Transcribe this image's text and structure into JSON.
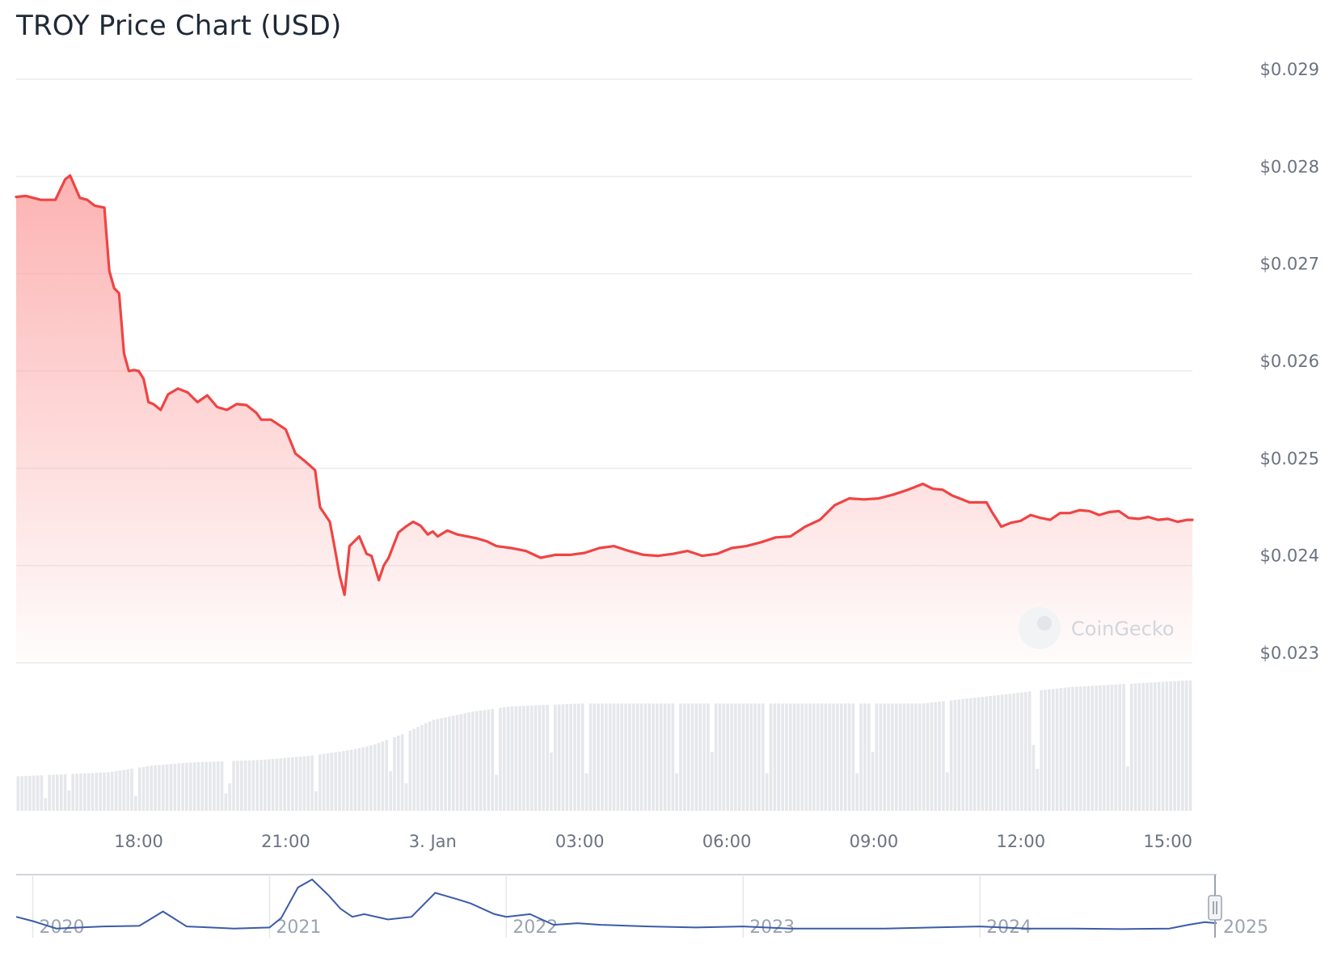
{
  "chart_data": {
    "type": "line",
    "title": "TROY Price Chart (USD)",
    "watermark": "CoinGecko",
    "colors": {
      "line": "#ef4444",
      "area_top": "#fca5a5",
      "volume": "#e5e7eb",
      "navigator": "#3b5ba9",
      "grid": "#ececec"
    },
    "y_axis": {
      "ticks": [
        "$0.029",
        "$0.028",
        "$0.027",
        "$0.026",
        "$0.025",
        "$0.024",
        "$0.023"
      ],
      "ylim": [
        0.023,
        0.029
      ]
    },
    "x_axis": {
      "xlim_hours": [
        15.5,
        39.5
      ],
      "ticks": [
        {
          "hour": 18,
          "label": "18:00"
        },
        {
          "hour": 21,
          "label": "21:00"
        },
        {
          "hour": 24,
          "label": "3. Jan"
        },
        {
          "hour": 27,
          "label": "03:00"
        },
        {
          "hour": 30,
          "label": "06:00"
        },
        {
          "hour": 33,
          "label": "09:00"
        },
        {
          "hour": 36,
          "label": "12:00"
        },
        {
          "hour": 39,
          "label": "15:00"
        }
      ]
    },
    "series": [
      {
        "x_hours": [
          15.5,
          15.7,
          16.0,
          16.3,
          16.5,
          16.6,
          16.8,
          16.95,
          17.1,
          17.3,
          17.4,
          17.5,
          17.6,
          17.7,
          17.8,
          17.9,
          18.0,
          18.1,
          18.2,
          18.3,
          18.45,
          18.6,
          18.8,
          19.0,
          19.2,
          19.4,
          19.6,
          19.8,
          20.0,
          20.2,
          20.4,
          20.5,
          20.7,
          21.0,
          21.2,
          21.4,
          21.6,
          21.7,
          21.9,
          22.0,
          22.1,
          22.2,
          22.3,
          22.5,
          22.65,
          22.75,
          22.9,
          23.0,
          23.1,
          23.3,
          23.45,
          23.6,
          23.75,
          23.9,
          24.0,
          24.1,
          24.3,
          24.5,
          24.7,
          24.9,
          25.1,
          25.3,
          25.6,
          25.9,
          26.2,
          26.5,
          26.8,
          27.1,
          27.4,
          27.7,
          28.0,
          28.3,
          28.6,
          28.9,
          29.2,
          29.5,
          29.8,
          30.1,
          30.4,
          30.7,
          31.0,
          31.3,
          31.6,
          31.9,
          32.2,
          32.5,
          32.8,
          33.1,
          33.4,
          33.7,
          34.0,
          34.2,
          34.4,
          34.6,
          34.8,
          34.95,
          35.1,
          35.3,
          35.4,
          35.6,
          35.8,
          36.0,
          36.2,
          36.4,
          36.6,
          36.8,
          37.0,
          37.2,
          37.4,
          37.6,
          37.8,
          38.0,
          38.2,
          38.4,
          38.6,
          38.8,
          39.0,
          39.2,
          39.4,
          39.5
        ],
        "values": [
          0.02779,
          0.0278,
          0.02776,
          0.02776,
          0.02797,
          0.02801,
          0.02778,
          0.02776,
          0.0277,
          0.02768,
          0.02703,
          0.02685,
          0.0268,
          0.02618,
          0.026,
          0.02601,
          0.026,
          0.02592,
          0.02568,
          0.02566,
          0.0256,
          0.02576,
          0.02582,
          0.02578,
          0.02568,
          0.02575,
          0.02563,
          0.0256,
          0.02566,
          0.02565,
          0.02557,
          0.0255,
          0.0255,
          0.0254,
          0.02515,
          0.02507,
          0.02498,
          0.0246,
          0.02445,
          0.02418,
          0.0239,
          0.0237,
          0.0242,
          0.0243,
          0.02412,
          0.0241,
          0.02385,
          0.024,
          0.02408,
          0.02434,
          0.0244,
          0.02445,
          0.02441,
          0.02432,
          0.02435,
          0.0243,
          0.02436,
          0.02432,
          0.0243,
          0.02428,
          0.02425,
          0.0242,
          0.02418,
          0.02415,
          0.02408,
          0.02411,
          0.02411,
          0.02413,
          0.02418,
          0.0242,
          0.02415,
          0.02411,
          0.0241,
          0.02412,
          0.02415,
          0.0241,
          0.02412,
          0.02418,
          0.0242,
          0.02424,
          0.02429,
          0.0243,
          0.0244,
          0.02447,
          0.02462,
          0.02469,
          0.02468,
          0.02469,
          0.02473,
          0.02478,
          0.02484,
          0.02479,
          0.02478,
          0.02472,
          0.02468,
          0.02465,
          0.02465,
          0.02465,
          0.02456,
          0.0244,
          0.02444,
          0.02446,
          0.02452,
          0.02449,
          0.02447,
          0.02454,
          0.02454,
          0.02457,
          0.02456,
          0.02452,
          0.02455,
          0.02456,
          0.02449,
          0.02448,
          0.0245,
          0.02447,
          0.02448,
          0.02445,
          0.02447,
          0.02447
        ]
      }
    ],
    "volume": {
      "baseline": 0.2,
      "steps": [
        {
          "x": 15.5,
          "level": 0.25
        },
        {
          "x": 17.4,
          "level": 0.28
        },
        {
          "x": 18.3,
          "level": 0.33
        },
        {
          "x": 19.0,
          "level": 0.35
        },
        {
          "x": 20.5,
          "level": 0.37
        },
        {
          "x": 21.5,
          "level": 0.4
        },
        {
          "x": 22.3,
          "level": 0.44
        },
        {
          "x": 22.8,
          "level": 0.48
        },
        {
          "x": 23.4,
          "level": 0.56
        },
        {
          "x": 24.0,
          "level": 0.66
        },
        {
          "x": 24.8,
          "level": 0.72
        },
        {
          "x": 25.6,
          "level": 0.76
        },
        {
          "x": 27.0,
          "level": 0.78
        },
        {
          "x": 30.5,
          "level": 0.78
        },
        {
          "x": 34.0,
          "level": 0.78
        },
        {
          "x": 35.0,
          "level": 0.82
        },
        {
          "x": 36.0,
          "level": 0.86
        },
        {
          "x": 37.0,
          "level": 0.9
        },
        {
          "x": 38.5,
          "level": 0.93
        },
        {
          "x": 39.5,
          "level": 0.95
        }
      ]
    },
    "navigator": {
      "year_labels": [
        "2020",
        "2021",
        "2022",
        "2023",
        "2024",
        "2025"
      ],
      "year_positions": [
        2020,
        2021,
        2022,
        2023,
        2024,
        2025
      ],
      "xlim": [
        2019.93,
        2025.0
      ],
      "history_x": [
        2019.93,
        2020.0,
        2020.1,
        2020.2,
        2020.3,
        2020.45,
        2020.55,
        2020.65,
        2020.75,
        2020.85,
        2021.0,
        2021.05,
        2021.12,
        2021.18,
        2021.25,
        2021.3,
        2021.35,
        2021.4,
        2021.5,
        2021.6,
        2021.7,
        2021.8,
        2021.85,
        2021.9,
        2021.95,
        2022.0,
        2022.1,
        2022.2,
        2022.3,
        2022.4,
        2022.6,
        2022.8,
        2023.0,
        2023.2,
        2023.4,
        2023.6,
        2023.8,
        2024.0,
        2024.2,
        2024.4,
        2024.6,
        2024.8,
        2024.88,
        2024.95,
        2025.0
      ],
      "history_y": [
        0.3,
        0.22,
        0.08,
        0.1,
        0.12,
        0.13,
        0.4,
        0.12,
        0.1,
        0.08,
        0.1,
        0.28,
        0.85,
        1.0,
        0.7,
        0.45,
        0.3,
        0.35,
        0.25,
        0.3,
        0.75,
        0.62,
        0.55,
        0.45,
        0.35,
        0.3,
        0.35,
        0.15,
        0.18,
        0.15,
        0.12,
        0.1,
        0.12,
        0.08,
        0.08,
        0.08,
        0.1,
        0.12,
        0.08,
        0.08,
        0.07,
        0.08,
        0.15,
        0.2,
        0.18
      ]
    }
  }
}
